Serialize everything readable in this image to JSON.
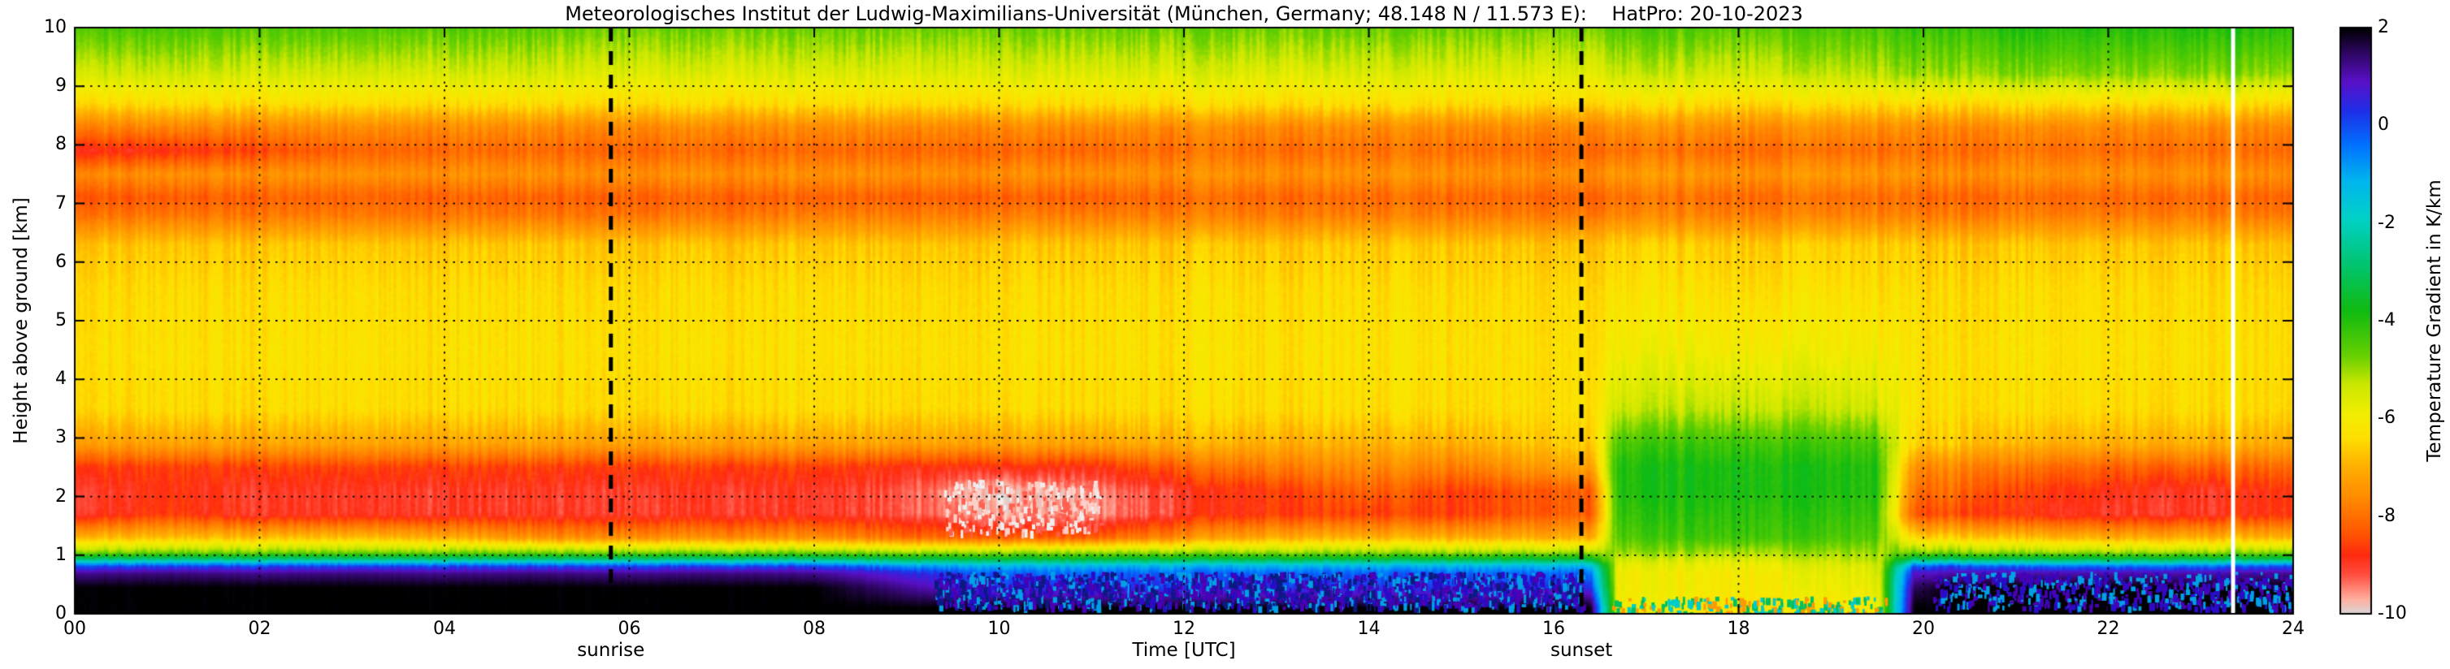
{
  "chart_data": {
    "type": "heatmap",
    "title": "Meteorologisches Institut der Ludwig-Maximilians-Universität (München, Germany; 48.148 N / 11.573 E):    HatPro: 20-10-2023",
    "xlabel": "Time [UTC]",
    "ylabel": "Height above ground [km]",
    "colorbar_label": "Temperature Gradient in K/km",
    "x_range": [
      0,
      24
    ],
    "y_range": [
      0,
      10
    ],
    "value_range": [
      -10,
      2
    ],
    "grid": true,
    "legend_position": "colorbar-right",
    "x_ticks": [
      0,
      2,
      4,
      6,
      8,
      10,
      12,
      14,
      16,
      18,
      20,
      22,
      24
    ],
    "x_ticklabels": [
      "00",
      "02",
      "04",
      "06",
      "08",
      "10",
      "12",
      "14",
      "16",
      "18",
      "20",
      "22",
      "24"
    ],
    "y_ticks": [
      0,
      1,
      2,
      3,
      4,
      5,
      6,
      7,
      8,
      9,
      10
    ],
    "y_ticklabels": [
      "0",
      "1",
      "2",
      "3",
      "4",
      "5",
      "6",
      "7",
      "8",
      "9",
      "10"
    ],
    "colorbar_ticks": [
      2,
      0,
      -2,
      -4,
      -6,
      -8,
      -10
    ],
    "colorbar_ticklabels": [
      "2",
      "0",
      "-2",
      "-4",
      "-6",
      "-8",
      "-10"
    ],
    "annotations": [
      {
        "label": "sunrise",
        "time_utc": 5.8,
        "style": "dashed-vertical-line"
      },
      {
        "label": "sunset",
        "time_utc": 16.3,
        "style": "dashed-vertical-line"
      }
    ],
    "data_gap_utc": 23.35,
    "times_utc": [
      0,
      1,
      2,
      3,
      4,
      5,
      6,
      7,
      8,
      9,
      10,
      11,
      12,
      13,
      14,
      15,
      16,
      16.4,
      16.7,
      18,
      19.5,
      19.9,
      20.3,
      21,
      22,
      23,
      24
    ],
    "heights_km": [
      0.1,
      0.45,
      0.7,
      0.82,
      0.92,
      1.05,
      1.3,
      1.7,
      2.1,
      2.5,
      2.9,
      3.5,
      4.5,
      5.5,
      6.3,
      6.8,
      7.1,
      7.5,
      7.9,
      8.3,
      8.7,
      9.2,
      10.0
    ],
    "gradient_K_per_km": [
      [
        2,
        2,
        2,
        2,
        2,
        2,
        2,
        2,
        2,
        2,
        2,
        2,
        2,
        2,
        2,
        2,
        2,
        2,
        -6,
        -6.2,
        -6,
        2,
        2,
        2,
        2,
        2,
        2
      ],
      [
        2,
        2,
        2,
        2,
        2,
        2,
        2,
        2,
        2,
        1.2,
        0.3,
        0.3,
        0.3,
        0.3,
        0.3,
        0.3,
        0.5,
        0.5,
        -6,
        -6,
        -5.8,
        1.5,
        2,
        2,
        2,
        2,
        2
      ],
      [
        1.2,
        1.3,
        1.2,
        1.3,
        1.2,
        1.3,
        1.2,
        1.3,
        1.2,
        0.5,
        -0.3,
        -0.3,
        -0.3,
        -0.3,
        -0.3,
        -0.3,
        -0.3,
        -0.3,
        -6,
        -6,
        -5.6,
        0.8,
        1,
        1,
        1,
        1,
        1.2
      ],
      [
        0,
        0,
        0,
        0,
        0,
        0,
        0,
        0,
        0,
        -0.8,
        -1.2,
        -1.2,
        -1.2,
        -1.2,
        -1.2,
        -1.2,
        -1.2,
        -1.2,
        -5.8,
        -5.8,
        -5.5,
        -0.3,
        0,
        -0.5,
        -0.5,
        -0.5,
        0
      ],
      [
        -2.5,
        -2.5,
        -2.5,
        -2.5,
        -2.5,
        -2.5,
        -2.5,
        -2.5,
        -2.5,
        -3,
        -3.2,
        -3.2,
        -3.2,
        -3.2,
        -3.2,
        -3.2,
        -3.2,
        -3.2,
        -5.5,
        -5.5,
        -5.2,
        -2.8,
        -2.8,
        -3,
        -3,
        -3,
        -2.8
      ],
      [
        -4.8,
        -4.8,
        -4.8,
        -4.8,
        -4.8,
        -4.8,
        -4.8,
        -4.8,
        -4.8,
        -5,
        -5,
        -5,
        -5,
        -5,
        -5,
        -5,
        -5,
        -5,
        -5,
        -5,
        -5,
        -4.8,
        -4.8,
        -5,
        -5,
        -5,
        -4.8
      ],
      [
        -6.8,
        -6.8,
        -6.8,
        -6.8,
        -7,
        -7.5,
        -7.5,
        -7.5,
        -7.5,
        -8,
        -8.2,
        -8.2,
        -7.5,
        -7,
        -7,
        -7,
        -7,
        -7,
        -4.5,
        -4.2,
        -4.5,
        -6.5,
        -6.5,
        -6.8,
        -7,
        -7,
        -6.8
      ],
      [
        -9,
        -8.6,
        -9,
        -9,
        -9,
        -9,
        -9,
        -9,
        -9,
        -9.2,
        -9.7,
        -9.6,
        -9,
        -8.6,
        -8.6,
        -8.6,
        -8.2,
        -8.2,
        -4.2,
        -4,
        -4.2,
        -8.4,
        -8.4,
        -8.8,
        -9,
        -9,
        -8.6
      ],
      [
        -9,
        -8.8,
        -9,
        -9,
        -9,
        -9,
        -9,
        -9,
        -9,
        -9.2,
        -9.9,
        -9.5,
        -9,
        -8.6,
        -8.2,
        -8.6,
        -8.2,
        -8.2,
        -4,
        -3.8,
        -4,
        -8,
        -8,
        -8.6,
        -8.8,
        -9,
        -8.6
      ],
      [
        -8.6,
        -8.6,
        -8.6,
        -8.6,
        -8.6,
        -8.6,
        -8.6,
        -8.6,
        -8.6,
        -8.8,
        -8.8,
        -8.8,
        -8.2,
        -7.8,
        -7.6,
        -7.8,
        -7.2,
        -7.2,
        -4,
        -3.8,
        -4,
        -7.6,
        -7.6,
        -8,
        -8.2,
        -8.2,
        -8
      ],
      [
        -7.2,
        -7.2,
        -7.2,
        -7.2,
        -7.2,
        -7.2,
        -7.2,
        -7.2,
        -7.2,
        -7.2,
        -7.2,
        -7.2,
        -7,
        -7,
        -7,
        -7,
        -6.6,
        -6.6,
        -4.4,
        -4.2,
        -4.4,
        -6.6,
        -6.6,
        -7,
        -7,
        -7,
        -7
      ],
      [
        -6.4,
        -6.4,
        -6.4,
        -6.4,
        -6.4,
        -6.4,
        -6.4,
        -6.4,
        -6.4,
        -6.4,
        -6.4,
        -6.4,
        -6.4,
        -6.4,
        -6.4,
        -6.4,
        -6.3,
        -6.3,
        -5.4,
        -5.2,
        -5.4,
        -6.3,
        -6.3,
        -6.4,
        -6.4,
        -6.4,
        -6.4
      ],
      [
        -6.3,
        -6.3,
        -6.3,
        -6.3,
        -6.3,
        -6.3,
        -6.3,
        -6.3,
        -6.3,
        -6.3,
        -6.3,
        -6.3,
        -6.3,
        -6.3,
        -6.3,
        -6.3,
        -6.3,
        -6.3,
        -6,
        -5.9,
        -6,
        -6.3,
        -6.3,
        -6.3,
        -6.3,
        -6.3,
        -6.3
      ],
      [
        -6.4,
        -6.4,
        -6.4,
        -6.4,
        -6.4,
        -6.4,
        -6.4,
        -6.4,
        -6.4,
        -6.4,
        -6.4,
        -6.4,
        -6.4,
        -6.4,
        -6.4,
        -6.4,
        -6.4,
        -6.4,
        -6.3,
        -6.3,
        -6.3,
        -6.4,
        -6.4,
        -6.4,
        -6.4,
        -6.4,
        -6.4
      ],
      [
        -6.7,
        -6.7,
        -6.7,
        -6.7,
        -6.7,
        -6.7,
        -6.7,
        -6.7,
        -6.7,
        -6.7,
        -6.7,
        -6.7,
        -6.7,
        -6.7,
        -6.7,
        -6.7,
        -6.7,
        -6.7,
        -6.6,
        -6.6,
        -6.6,
        -6.7,
        -6.7,
        -6.7,
        -6.7,
        -6.7,
        -6.7
      ],
      [
        -7.9,
        -7.9,
        -7.9,
        -7.9,
        -7.9,
        -7.9,
        -7.9,
        -7.9,
        -7.8,
        -7.8,
        -7.8,
        -7.8,
        -7.8,
        -7.8,
        -7.8,
        -7.8,
        -7.8,
        -7.8,
        -7.7,
        -7.7,
        -7.7,
        -7.8,
        -7.8,
        -7.8,
        -7.8,
        -7.8,
        -7.8
      ],
      [
        -8.3,
        -8.3,
        -8.2,
        -8.2,
        -8.2,
        -8.2,
        -8.2,
        -8.2,
        -8.2,
        -8.2,
        -8.2,
        -8.2,
        -8.1,
        -8.1,
        -8.1,
        -8.1,
        -8.1,
        -8.1,
        -8,
        -8,
        -8,
        -8.1,
        -8.1,
        -8.1,
        -8.1,
        -8.1,
        -8.1
      ],
      [
        -7.5,
        -7.5,
        -7.5,
        -7.5,
        -7.5,
        -7.5,
        -7.5,
        -7.5,
        -7.5,
        -7.5,
        -7.5,
        -7.5,
        -7.5,
        -7.5,
        -7.5,
        -7.5,
        -7.5,
        -7.5,
        -7.4,
        -7.4,
        -7.4,
        -7.5,
        -7.5,
        -7.5,
        -7.5,
        -7.5,
        -7.5
      ],
      [
        -8.8,
        -8.8,
        -8.5,
        -8.2,
        -8.1,
        -8.1,
        -8.1,
        -8.1,
        -8.1,
        -8.1,
        -8.1,
        -8.1,
        -8,
        -8,
        -8,
        -8,
        -8,
        -8,
        -8,
        -8,
        -8,
        -8,
        -8,
        -8,
        -8,
        -8,
        -8
      ],
      [
        -7.7,
        -7.7,
        -7.7,
        -7.6,
        -7.6,
        -7.6,
        -7.6,
        -7.6,
        -7.6,
        -7.6,
        -7.6,
        -7.6,
        -7.6,
        -7.6,
        -7.6,
        -7.6,
        -7.6,
        -7.6,
        -7.5,
        -7.5,
        -7.5,
        -7.6,
        -7.6,
        -7.6,
        -7.6,
        -7.6,
        -7.6
      ],
      [
        -6.4,
        -6.4,
        -6.4,
        -6.4,
        -6.4,
        -6.4,
        -6.4,
        -6.4,
        -6.4,
        -6.4,
        -6.4,
        -6.4,
        -6.4,
        -6.4,
        -6.4,
        -6.4,
        -6.4,
        -6.4,
        -6.4,
        -6.4,
        -6.4,
        -6.4,
        -6.4,
        -6.4,
        -6.4,
        -6.4,
        -6.4
      ],
      [
        -5.4,
        -5.4,
        -5.5,
        -5.5,
        -5.5,
        -5.5,
        -5.6,
        -5.6,
        -5.6,
        -5.6,
        -5.6,
        -5.6,
        -5.6,
        -5.6,
        -5.6,
        -5.6,
        -5.6,
        -5.6,
        -5.4,
        -5.4,
        -5.2,
        -5,
        -5,
        -4.9,
        -4.9,
        -4.9,
        -4.9
      ],
      [
        -4.4,
        -4.4,
        -4.5,
        -4.5,
        -4.5,
        -4.6,
        -4.7,
        -4.7,
        -4.7,
        -4.7,
        -4.7,
        -4.7,
        -4.7,
        -4.7,
        -4.7,
        -4.7,
        -4.7,
        -4.7,
        -4.5,
        -4.5,
        -4.4,
        -4.2,
        -4.2,
        -4,
        -4,
        -4,
        -4
      ]
    ],
    "colormap_stops": [
      [
        -10.0,
        "#d8d8d8"
      ],
      [
        -9.7,
        "#ffb0a0"
      ],
      [
        -9.2,
        "#ff5040"
      ],
      [
        -8.8,
        "#ff2a10"
      ],
      [
        -8.3,
        "#ff5a00"
      ],
      [
        -7.6,
        "#ff8c00"
      ],
      [
        -7.0,
        "#ffae00"
      ],
      [
        -6.4,
        "#ffdf00"
      ],
      [
        -5.9,
        "#f2ee00"
      ],
      [
        -5.3,
        "#cce800"
      ],
      [
        -4.7,
        "#66d000"
      ],
      [
        -3.8,
        "#11bb11"
      ],
      [
        -2.8,
        "#00c575"
      ],
      [
        -1.9,
        "#00d2c8"
      ],
      [
        -1.1,
        "#00b4f0"
      ],
      [
        -0.4,
        "#0072ff"
      ],
      [
        0.3,
        "#1f2fe8"
      ],
      [
        0.9,
        "#5a10c8"
      ],
      [
        1.5,
        "#2d0660"
      ],
      [
        2.0,
        "#000000"
      ]
    ],
    "speckle_regions": [
      {
        "t0": 9.3,
        "t1": 16.3,
        "h0": 0.12,
        "h1": 0.72,
        "density": 0.55,
        "colors": [
          "#4a00b4",
          "#2a0cc8",
          "#0a1a80",
          "#00a0e6"
        ]
      },
      {
        "t0": 20.1,
        "t1": 24,
        "h0": 0.12,
        "h1": 0.72,
        "density": 0.4,
        "colors": [
          "#4a00b4",
          "#2a0cc8",
          "#00a0e6"
        ]
      },
      {
        "t0": 16.6,
        "t1": 19.6,
        "h0": 0.02,
        "h1": 0.3,
        "density": 0.35,
        "colors": [
          "#00c060",
          "#00cccc",
          "#ff9900"
        ]
      },
      {
        "t0": 9.4,
        "t1": 11.1,
        "h0": 1.4,
        "h1": 2.3,
        "density": 0.3,
        "colors": [
          "#eeeeee",
          "#ffd0c8",
          "#ff6050"
        ]
      }
    ]
  }
}
